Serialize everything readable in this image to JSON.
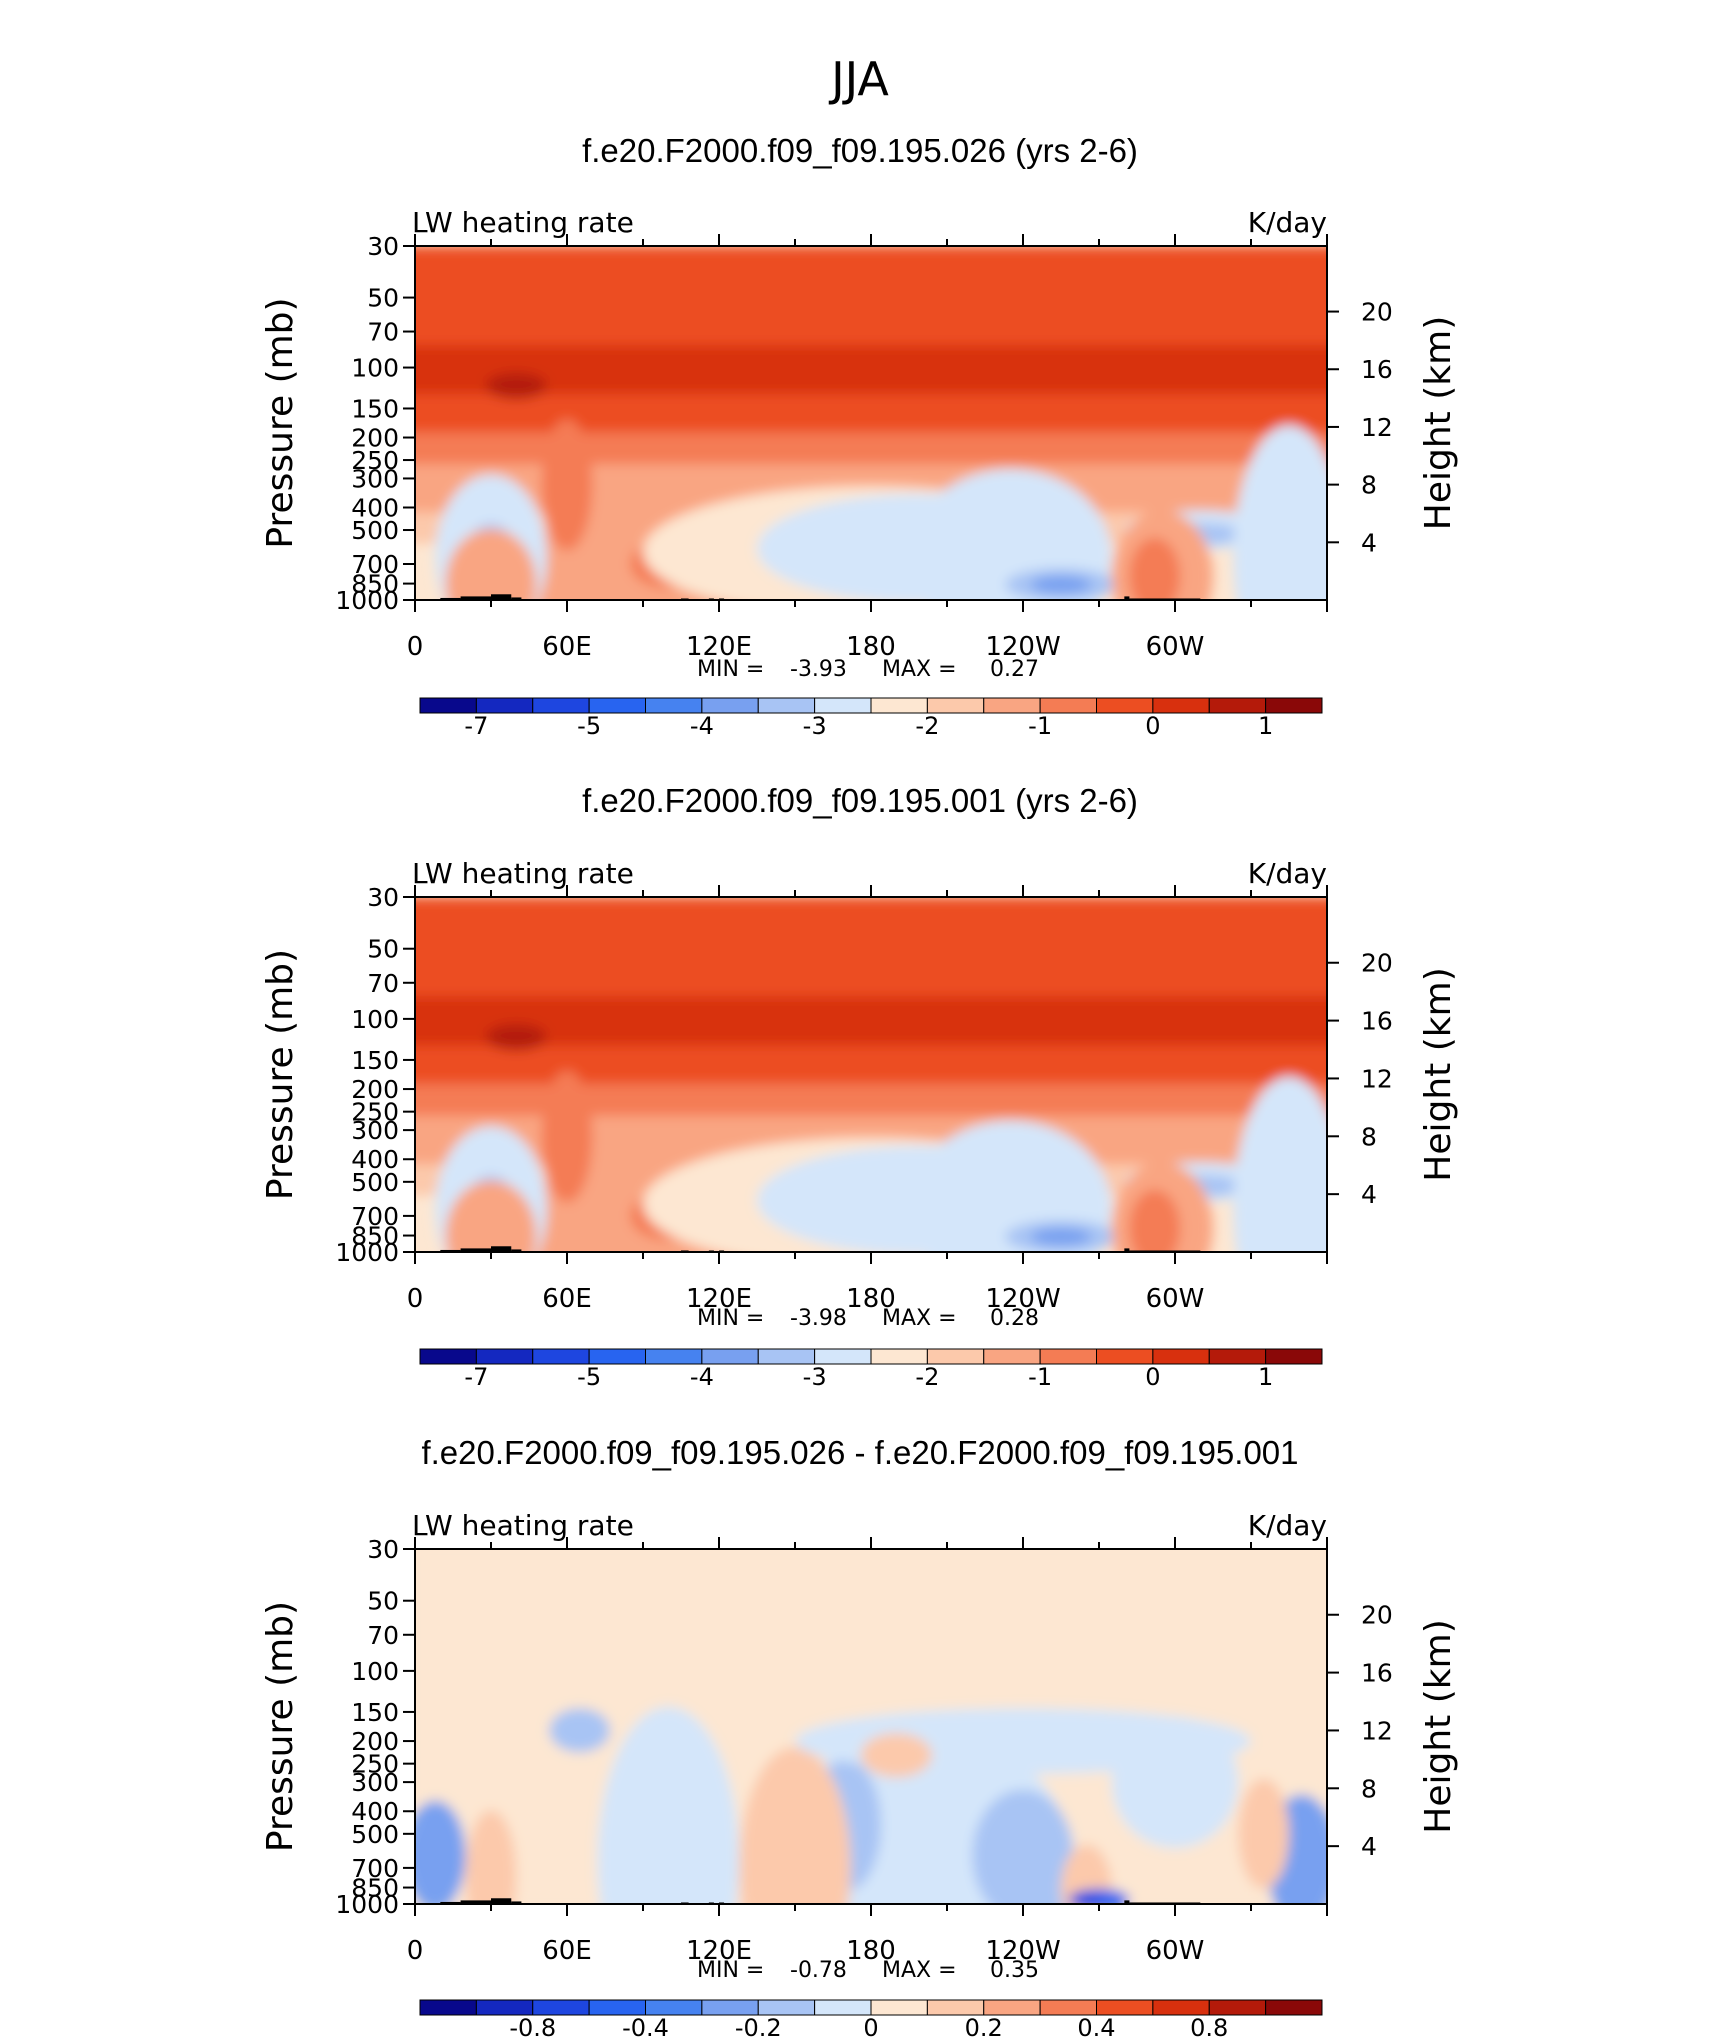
{
  "figure": {
    "title": "JJA"
  },
  "chart_data": [
    {
      "type": "heatmap",
      "title": "f.e20.F2000.f09_f09.195.026 (yrs 2-6)",
      "left_label": "LW heating rate",
      "units": "K/day",
      "ylabel": "Pressure (mb)",
      "ylabel_right": "Height (km)",
      "x_ticks": [
        "0",
        "60E",
        "120E",
        "180",
        "120W",
        "60W"
      ],
      "y_ticks": [
        "30",
        "50",
        "70",
        "100",
        "150",
        "200",
        "250",
        "300",
        "400",
        "500",
        "700",
        "850",
        "1000"
      ],
      "height_ticks": [
        "20",
        "16",
        "12",
        "8",
        "4"
      ],
      "min_label": "MIN =",
      "min_value": "-3.93",
      "max_label": "MAX =",
      "max_value": "0.27",
      "xlim": [
        0,
        360
      ],
      "ylim": [
        1000,
        30
      ],
      "colorbar": {
        "labels": [
          "-7",
          "-5",
          "-4",
          "-3",
          "-2",
          "-1",
          "0",
          "1"
        ],
        "colors": [
          "#08088c",
          "#1428c0",
          "#1e46e0",
          "#2864f0",
          "#4682f0",
          "#78a0f0",
          "#a8c4f4",
          "#d4e6fa",
          "#fde7d2",
          "#fcc9ab",
          "#f9a582",
          "#f47c54",
          "#ec4e22",
          "#d8300e",
          "#b41a0a",
          "#8a0808"
        ]
      }
    },
    {
      "type": "heatmap",
      "title": "f.e20.F2000.f09_f09.195.001 (yrs 2-6)",
      "left_label": "LW heating rate",
      "units": "K/day",
      "ylabel": "Pressure (mb)",
      "ylabel_right": "Height (km)",
      "x_ticks": [
        "0",
        "60E",
        "120E",
        "180",
        "120W",
        "60W"
      ],
      "y_ticks": [
        "30",
        "50",
        "70",
        "100",
        "150",
        "200",
        "250",
        "300",
        "400",
        "500",
        "700",
        "850",
        "1000"
      ],
      "height_ticks": [
        "20",
        "16",
        "12",
        "8",
        "4"
      ],
      "min_label": "MIN =",
      "min_value": "-3.98",
      "max_label": "MAX =",
      "max_value": "0.28",
      "xlim": [
        0,
        360
      ],
      "ylim": [
        1000,
        30
      ],
      "colorbar": {
        "labels": [
          "-7",
          "-5",
          "-4",
          "-3",
          "-2",
          "-1",
          "0",
          "1"
        ],
        "colors": [
          "#08088c",
          "#1428c0",
          "#1e46e0",
          "#2864f0",
          "#4682f0",
          "#78a0f0",
          "#a8c4f4",
          "#d4e6fa",
          "#fde7d2",
          "#fcc9ab",
          "#f9a582",
          "#f47c54",
          "#ec4e22",
          "#d8300e",
          "#b41a0a",
          "#8a0808"
        ]
      }
    },
    {
      "type": "heatmap",
      "title": "f.e20.F2000.f09_f09.195.026 - f.e20.F2000.f09_f09.195.001",
      "left_label": "LW heating rate",
      "units": "K/day",
      "ylabel": "Pressure (mb)",
      "ylabel_right": "Height (km)",
      "x_ticks": [
        "0",
        "60E",
        "120E",
        "180",
        "120W",
        "60W"
      ],
      "y_ticks": [
        "30",
        "50",
        "70",
        "100",
        "150",
        "200",
        "250",
        "300",
        "400",
        "500",
        "700",
        "850",
        "1000"
      ],
      "height_ticks": [
        "20",
        "16",
        "12",
        "8",
        "4"
      ],
      "min_label": "MIN =",
      "min_value": "-0.78",
      "max_label": "MAX =",
      "max_value": "0.35",
      "xlim": [
        0,
        360
      ],
      "ylim": [
        1000,
        30
      ],
      "colorbar": {
        "labels": [
          "-0.8",
          "-0.4",
          "-0.2",
          "0",
          "0.2",
          "0.4",
          "0.8"
        ],
        "colors": [
          "#08088c",
          "#1428c0",
          "#1e46e0",
          "#2864f0",
          "#4682f0",
          "#78a0f0",
          "#a8c4f4",
          "#d4e6fa",
          "#fde7d2",
          "#fcc9ab",
          "#f9a582",
          "#f47c54",
          "#ec4e22",
          "#d8300e",
          "#b41a0a",
          "#8a0808"
        ]
      }
    }
  ]
}
